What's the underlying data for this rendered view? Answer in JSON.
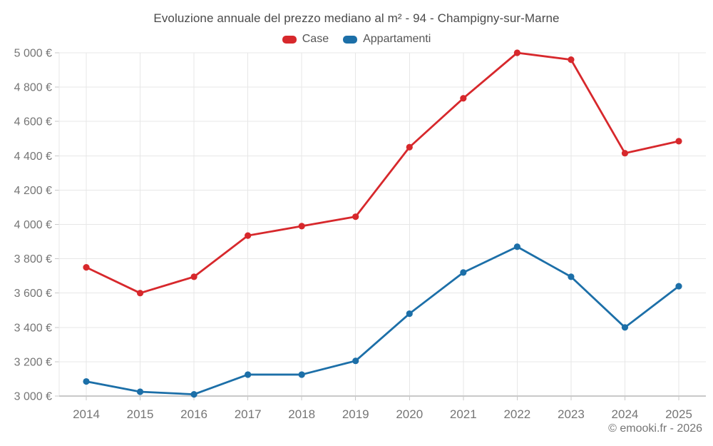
{
  "header": {
    "title": "Evoluzione annuale del prezzo mediano al m² - 94 - Champigny-sur-Marne"
  },
  "legend": {
    "items": [
      {
        "label": "Case",
        "color": "#d7282c"
      },
      {
        "label": "Appartamenti",
        "color": "#1c6fa8"
      }
    ]
  },
  "footer": {
    "credit": "© emooki.fr - 2026"
  },
  "colors": {
    "background": "#ffffff",
    "title_text": "#4a4a4a",
    "axis_text": "#757575",
    "gridline": "#e7e7e7",
    "axis_line": "#c9c9c9",
    "case_red": "#d7282c",
    "appartamenti_blue": "#1c6fa8"
  },
  "chart_data": {
    "type": "line",
    "title": "Evoluzione annuale del prezzo mediano al m² - 94 - Champigny-sur-Marne",
    "xlabel": "",
    "ylabel": "",
    "grid": true,
    "legend_position": "top",
    "x": [
      "2014",
      "2015",
      "2016",
      "2017",
      "2018",
      "2019",
      "2020",
      "2021",
      "2022",
      "2023",
      "2024",
      "2025"
    ],
    "ylim": [
      3000,
      5000
    ],
    "ytick_step": 200,
    "ytick_labels": [
      "3 000 €",
      "3 200 €",
      "3 400 €",
      "3 600 €",
      "3 800 €",
      "4 000 €",
      "4 200 €",
      "4 400 €",
      "4 600 €",
      "4 800 €",
      "5 000 €"
    ],
    "series": [
      {
        "name": "Case",
        "color": "#d7282c",
        "values": [
          3750,
          3600,
          3695,
          3935,
          3990,
          4045,
          4450,
          4735,
          5000,
          4960,
          4415,
          4485
        ]
      },
      {
        "name": "Appartamenti",
        "color": "#1c6fa8",
        "values": [
          3085,
          3025,
          3010,
          3125,
          3125,
          3205,
          3480,
          3720,
          3870,
          3695,
          3400,
          3640
        ]
      }
    ]
  }
}
